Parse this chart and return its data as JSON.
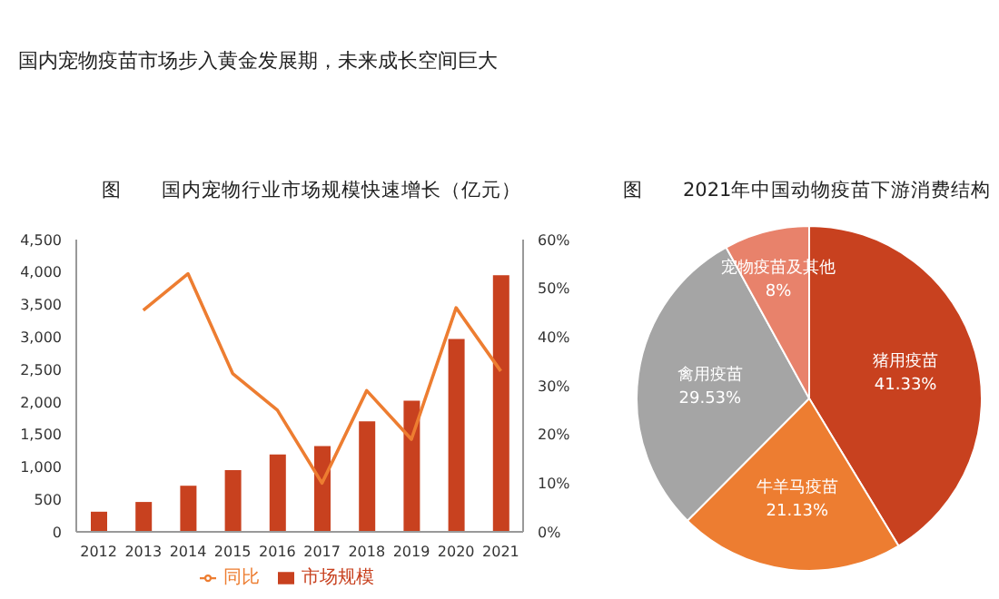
{
  "chart_data": [
    {
      "type": "bar",
      "title": "图　　国内宠物行业市场规模快速增长（亿元）",
      "annotations": [
        "国内宠物疫苗市场步入黄金发展期，未来成长空间巨大"
      ],
      "categories": [
        "2012",
        "2013",
        "2014",
        "2015",
        "2016",
        "2017",
        "2018",
        "2019",
        "2020",
        "2021"
      ],
      "series": [
        {
          "name": "市场规模",
          "type": "bar",
          "color": "#c8411f",
          "values": [
            310,
            460,
            710,
            950,
            1190,
            1320,
            1700,
            2020,
            2970,
            3950
          ]
        },
        {
          "name": "同比",
          "type": "line",
          "axis": "y2",
          "color": "#ed7d31",
          "values": [
            null,
            45.5,
            53,
            32.5,
            25,
            10,
            29,
            19,
            46,
            33
          ]
        }
      ],
      "ylim": [
        0,
        4500
      ],
      "yticks": [
        0,
        500,
        {
          "value": 1000,
          "label": "1,000"
        },
        {
          "value": 1500,
          "label": "1,500"
        },
        {
          "value": 2000,
          "label": "2,000"
        },
        {
          "value": 2500,
          "label": "2,500"
        },
        {
          "value": 3000,
          "label": "3,000"
        },
        {
          "value": 3500,
          "label": "3,500"
        },
        {
          "value": 4000,
          "label": "4,000"
        },
        {
          "value": 4500,
          "label": "4,500"
        }
      ],
      "y2lim": [
        0,
        60
      ],
      "y2ticks": [
        {
          "value": 0,
          "label": "0%"
        },
        {
          "value": 10,
          "label": "10%"
        },
        {
          "value": 20,
          "label": "20%"
        },
        {
          "value": 30,
          "label": "30%"
        },
        {
          "value": 40,
          "label": "40%"
        },
        {
          "value": 50,
          "label": "50%"
        },
        {
          "value": 60,
          "label": "60%"
        }
      ],
      "grid": false,
      "legend": "bottom",
      "marker": "none",
      "line_style": "solid"
    },
    {
      "type": "pie",
      "title": "图　　2021年中国动物疫苗下游消费结构",
      "categories": [
        "猪用疫苗",
        "牛羊马疫苗",
        "禽用疫苗",
        "宠物疫苗及其他"
      ],
      "values": [
        41.33,
        21.13,
        29.53,
        8
      ],
      "value_labels": [
        "41.33%",
        "21.13%",
        "29.53%",
        "8%"
      ],
      "colors": [
        "#c8411f",
        "#ed7d31",
        "#a5a5a5",
        "#e8826b"
      ],
      "legend": false
    }
  ]
}
